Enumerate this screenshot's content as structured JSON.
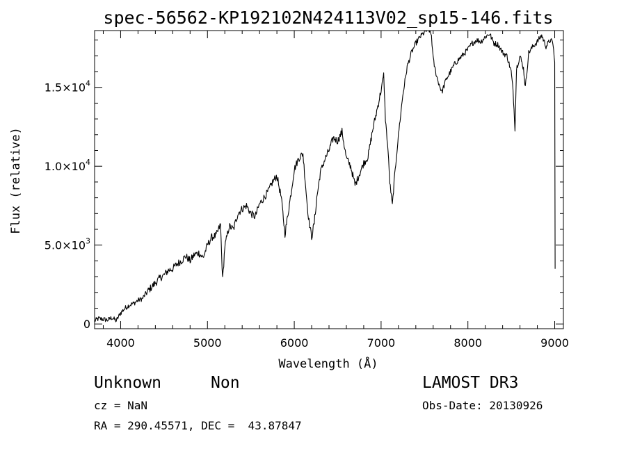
{
  "chart_data": {
    "type": "line",
    "title": "spec-56562-KP192102N424113V02_sp15-146.fits",
    "xlabel": "Wavelength (Å)",
    "ylabel": "Flux (relative)",
    "xlim": [
      3700,
      9100
    ],
    "ylim": [
      -300,
      18600
    ],
    "grid": false,
    "xticks": [
      4000,
      5000,
      6000,
      7000,
      8000,
      9000
    ],
    "xtick_labels": [
      "4000",
      "5000",
      "6000",
      "7000",
      "8000",
      "9000"
    ],
    "yticks": [
      0,
      5000,
      10000,
      15000
    ],
    "ytick_labels": [
      {
        "mant": "0",
        "exp": ""
      },
      {
        "mant": "5.0×10",
        "exp": "3"
      },
      {
        "mant": "1.0×10",
        "exp": "4"
      },
      {
        "mant": "1.5×10",
        "exp": "4"
      }
    ],
    "series": [
      {
        "x": [
          3700,
          3750,
          3800,
          3850,
          3900,
          3950,
          4000,
          4050,
          4100,
          4150,
          4200,
          4250,
          4300,
          4350,
          4400,
          4450,
          4500,
          4550,
          4600,
          4650,
          4700,
          4750,
          4800,
          4850,
          4900,
          4950,
          5000,
          5050,
          5100,
          5150,
          5175,
          5200,
          5250,
          5300,
          5350,
          5400,
          5450,
          5500,
          5550,
          5600,
          5650,
          5700,
          5750,
          5800,
          5850,
          5893,
          5950,
          6000,
          6050,
          6100,
          6150,
          6170,
          6200,
          6230,
          6260,
          6300,
          6350,
          6400,
          6450,
          6500,
          6550,
          6600,
          6650,
          6700,
          6750,
          6800,
          6850,
          6900,
          6950,
          7000,
          7030,
          7050,
          7080,
          7100,
          7130,
          7150,
          7200,
          7250,
          7300,
          7350,
          7400,
          7450,
          7500,
          7550,
          7580,
          7600,
          7620,
          7650,
          7700,
          7750,
          7800,
          7850,
          7900,
          7950,
          8000,
          8050,
          8100,
          8150,
          8200,
          8250,
          8300,
          8350,
          8400,
          8450,
          8498,
          8520,
          8542,
          8560,
          8600,
          8640,
          8662,
          8700,
          8750,
          8800,
          8850,
          8900,
          8950,
          8980,
          9000,
          9005
        ],
        "y": [
          200,
          350,
          300,
          250,
          400,
          200,
          700,
          1000,
          1200,
          1300,
          1500,
          1600,
          2000,
          2300,
          2600,
          2900,
          3100,
          3400,
          3500,
          3800,
          4000,
          4300,
          4000,
          4400,
          4500,
          4200,
          5000,
          5500,
          5600,
          6300,
          2800,
          4900,
          6200,
          6000,
          7000,
          7300,
          7500,
          7000,
          6800,
          7600,
          8000,
          8400,
          9000,
          9400,
          8000,
          5700,
          7800,
          9800,
          10500,
          10800,
          7500,
          6500,
          5500,
          6400,
          8000,
          9600,
          10400,
          11000,
          11800,
          11600,
          12200,
          10500,
          10000,
          8800,
          9500,
          10200,
          10600,
          12200,
          13500,
          14800,
          15800,
          13000,
          11000,
          9000,
          7500,
          9000,
          12000,
          14500,
          16300,
          17200,
          17800,
          18200,
          18500,
          18700,
          18300,
          16800,
          16200,
          15500,
          14700,
          15500,
          16000,
          16500,
          16800,
          17100,
          17400,
          17800,
          18000,
          17900,
          18200,
          18400,
          17800,
          17700,
          17200,
          17000,
          16000,
          14800,
          12400,
          16200,
          17000,
          16200,
          15000,
          17200,
          17600,
          17900,
          18300,
          17600,
          18000,
          17800,
          16500,
          3500
        ]
      }
    ]
  },
  "footer": {
    "object_class": "Unknown",
    "object_subclass": "Non",
    "survey": "LAMOST DR3",
    "cz": "cz = NaN",
    "obs_date": "Obs-Date: 20130926",
    "ra_dec": "RA = 290.45571, DEC =  43.87847"
  },
  "colors": {
    "line": "#000000",
    "background": "#ffffff"
  }
}
